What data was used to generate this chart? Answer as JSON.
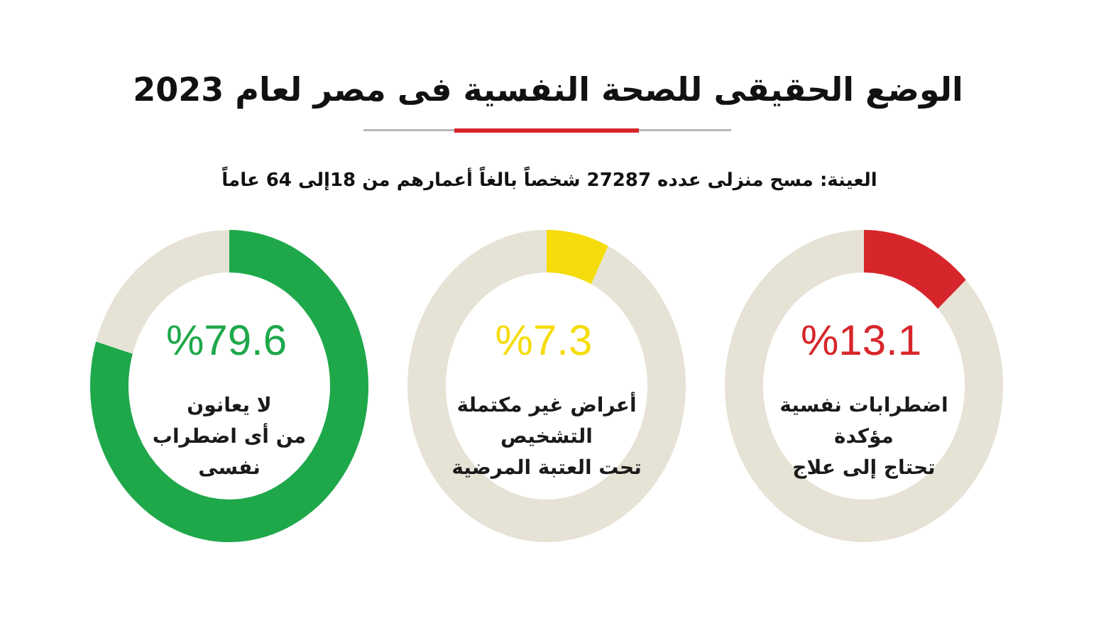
{
  "chart_data": [
    {
      "type": "donut",
      "title": "الوضع الحقيقى للصحة النفسية فى مصر لعام 2023",
      "subtitle": "العينة: مسح منزلى عدده 27287 شخصاً بالغاً أعمارهم من 18إلى 64 عاماً",
      "categories": [
        null,
        null
      ],
      "values": [
        13.1,
        86.9
      ],
      "colors": [
        "#d7262b",
        "#e6e2d5"
      ],
      "value_labels": [
        "%13.1",
        null
      ],
      "annotations": [
        "اضطرابات نفسية\nمؤكدة\nتحتاج إلى علاج"
      ]
    },
    {
      "type": "donut",
      "categories": [
        null,
        null
      ],
      "values": [
        7.3,
        92.7
      ],
      "colors": [
        "#f5dc0a",
        "#e6e2d5"
      ],
      "value_labels": [
        "%7.3",
        null
      ],
      "annotations": [
        "أعراض غير مكتملة\nالتشخيص\nتحت العتبة المرضية"
      ]
    },
    {
      "type": "donut",
      "categories": [
        null,
        null
      ],
      "values": [
        79.6,
        20.4
      ],
      "colors": [
        "#1ea84a",
        "#e6e2d5"
      ],
      "value_labels": [
        "%79.6",
        null
      ],
      "annotations": [
        "لا يعانون\nمن أى اضطراب\nنفسى"
      ]
    }
  ]
}
